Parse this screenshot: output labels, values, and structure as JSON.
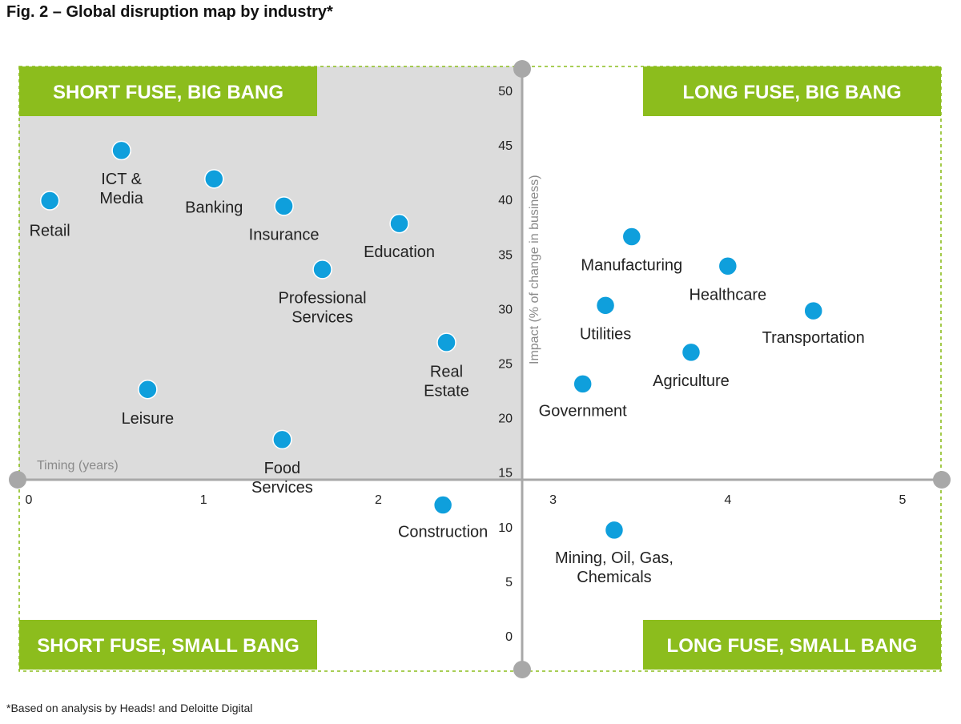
{
  "figure": {
    "title": "Fig. 2 – Global disruption map by industry*",
    "footnote": "*Based on analysis by Heads! and Deloitte Digital"
  },
  "colors": {
    "quadrant_green": "#8cbd1d",
    "point_blue": "#0f9fdc",
    "shaded_quadrant": "#dcdcdc",
    "axis_gray": "#a8a8a8",
    "border_dash": "#8cbd1d"
  },
  "chart_data": {
    "type": "scatter",
    "xlabel": "Timing (years)",
    "ylabel": "Impact  (% of change in business)",
    "xlim": [
      0,
      5
    ],
    "ylim": [
      0,
      50
    ],
    "x_ticks": [
      0,
      1,
      2,
      3,
      4,
      5
    ],
    "y_ticks": [
      0,
      5,
      10,
      15,
      20,
      25,
      30,
      35,
      40,
      45,
      50
    ],
    "quadrants": [
      "SHORT FUSE, BIG BANG",
      "LONG FUSE, BIG BANG",
      "SHORT FUSE, SMALL BANG",
      "LONG FUSE, SMALL BANG"
    ],
    "grid": false,
    "points": [
      {
        "label": "Retail",
        "x": 0.12,
        "y": 39.9
      },
      {
        "label": "ICT & Media",
        "x": 0.53,
        "y": 44.5
      },
      {
        "label": "Banking",
        "x": 1.06,
        "y": 41.9
      },
      {
        "label": "Insurance",
        "x": 1.46,
        "y": 39.4
      },
      {
        "label": "Education",
        "x": 2.12,
        "y": 37.8
      },
      {
        "label": "Professional Services",
        "x": 1.68,
        "y": 33.6
      },
      {
        "label": "Real Estate",
        "x": 2.39,
        "y": 26.9
      },
      {
        "label": "Leisure",
        "x": 0.68,
        "y": 22.6
      },
      {
        "label": "Food Services",
        "x": 1.45,
        "y": 18.0
      },
      {
        "label": "Construction",
        "x": 2.37,
        "y": 12.0
      },
      {
        "label": "Manufacturing",
        "x": 3.45,
        "y": 36.6
      },
      {
        "label": "Healthcare",
        "x": 4.0,
        "y": 33.9
      },
      {
        "label": "Utilities",
        "x": 3.3,
        "y": 30.3
      },
      {
        "label": "Transportation",
        "x": 4.49,
        "y": 29.8
      },
      {
        "label": "Agriculture",
        "x": 3.79,
        "y": 26.0
      },
      {
        "label": "Government",
        "x": 3.17,
        "y": 23.1
      },
      {
        "label": "Mining, Oil, Gas, Chemicals",
        "x": 3.35,
        "y": 9.7
      }
    ]
  }
}
